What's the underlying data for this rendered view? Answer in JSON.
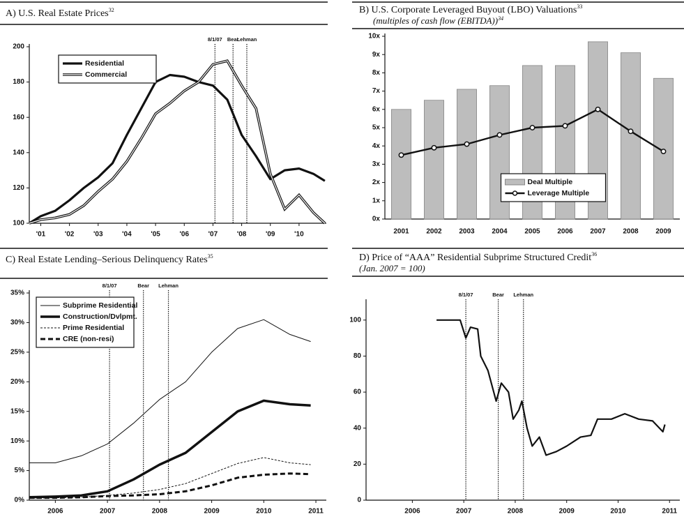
{
  "chart_data": [
    {
      "type": "line",
      "title": "A) U.S. Real Estate Prices",
      "footnote": "32",
      "x": [
        2000.6,
        2001,
        2001.5,
        2002,
        2002.5,
        2003,
        2003.5,
        2004,
        2004.5,
        2005,
        2005.5,
        2006,
        2006.5,
        2007,
        2007.5,
        2008,
        2008.5,
        2009,
        2009.5,
        2010,
        2010.5,
        2010.9
      ],
      "series": [
        {
          "name": "Residential",
          "color": "#111111",
          "style": "solid",
          "width": 3.2,
          "values": [
            100,
            104,
            107,
            113,
            120,
            126,
            134,
            150,
            165,
            180,
            184,
            183,
            180,
            178,
            170,
            150,
            138,
            125,
            130,
            131,
            128,
            124
          ]
        },
        {
          "name": "Commercial",
          "color": "#111111",
          "style": "double",
          "width": 1.2,
          "values": [
            100,
            102,
            103,
            105,
            110,
            118,
            125,
            135,
            148,
            162,
            168,
            175,
            180,
            190,
            192,
            178,
            165,
            128,
            108,
            116,
            106,
            100
          ]
        }
      ],
      "xlim": [
        2000.6,
        2010.95
      ],
      "ylim": [
        100,
        200
      ],
      "xticks": [
        {
          "value": 2001,
          "label": "'01"
        },
        {
          "value": 2002,
          "label": "'02"
        },
        {
          "value": 2003,
          "label": "'03"
        },
        {
          "value": 2004,
          "label": "'04"
        },
        {
          "value": 2005,
          "label": "'05"
        },
        {
          "value": 2006,
          "label": "'06"
        },
        {
          "value": 2007,
          "label": "'07"
        },
        {
          "value": 2008,
          "label": "'08"
        },
        {
          "value": 2009,
          "label": "'09"
        },
        {
          "value": 2010,
          "label": "'10"
        }
      ],
      "yticks": [
        100,
        120,
        140,
        160,
        180,
        200
      ],
      "events": [
        {
          "label": "8/1/07",
          "x": 2007.07
        },
        {
          "label": "Bear",
          "x": 2007.7
        },
        {
          "label": "Lehman",
          "x": 2008.18
        }
      ],
      "legend": "upper left"
    },
    {
      "type": "combo",
      "title": "B) U.S. Corporate Leveraged Buyout (LBO) Valuations",
      "footnote": "33",
      "subtitle": "(multiples of cash flow (EBITDA))",
      "subtitle_footnote": "34",
      "categories": [
        "2001",
        "2002",
        "2003",
        "2004",
        "2005",
        "2006",
        "2007",
        "2008",
        "2009"
      ],
      "series": [
        {
          "name": "Deal Multiple",
          "type": "bar",
          "color": "#bdbdbd",
          "values": [
            6.0,
            6.5,
            7.1,
            7.3,
            8.4,
            8.4,
            9.7,
            9.1,
            7.7
          ]
        },
        {
          "name": "Leverage Multiple",
          "type": "line",
          "color": "#111111",
          "values": [
            3.5,
            3.9,
            4.1,
            4.6,
            5.0,
            5.1,
            6.0,
            4.8,
            3.7
          ]
        }
      ],
      "ylim": [
        0,
        10
      ],
      "yticks": [
        {
          "value": 0,
          "label": "0x"
        },
        {
          "value": 1,
          "label": "1x"
        },
        {
          "value": 2,
          "label": "2x"
        },
        {
          "value": 3,
          "label": "3x"
        },
        {
          "value": 4,
          "label": "4x"
        },
        {
          "value": 5,
          "label": "5x"
        },
        {
          "value": 6,
          "label": "6x"
        },
        {
          "value": 7,
          "label": "7x"
        },
        {
          "value": 8,
          "label": "8x"
        },
        {
          "value": 9,
          "label": "9x"
        },
        {
          "value": 10,
          "label": "10x"
        }
      ],
      "legend": "lower center"
    },
    {
      "type": "line",
      "title": "C) Real Estate Lending–Serious Delinquency Rates",
      "footnote": "35",
      "x": [
        2005.5,
        2006,
        2006.5,
        2007,
        2007.5,
        2008,
        2008.5,
        2009,
        2009.5,
        2010,
        2010.5,
        2010.9
      ],
      "series": [
        {
          "name": "Subprime Residential",
          "color": "#111111",
          "style": "solid",
          "width": 1,
          "values": [
            6.3,
            6.3,
            7.5,
            9.5,
            13,
            17,
            20,
            25,
            29,
            30.5,
            28,
            26.8
          ]
        },
        {
          "name": "Construction/Dvlpmt.",
          "color": "#111111",
          "style": "solid",
          "width": 3.5,
          "values": [
            0.5,
            0.6,
            0.8,
            1.5,
            3.5,
            6,
            8,
            11.5,
            15,
            16.8,
            16.2,
            16
          ]
        },
        {
          "name": "Prime Residential",
          "color": "#111111",
          "style": "dashed",
          "width": 1,
          "values": [
            0.3,
            0.4,
            0.5,
            0.8,
            1.2,
            1.8,
            2.8,
            4.5,
            6.2,
            7.2,
            6.3,
            6.0
          ]
        },
        {
          "name": "CRE (non-resi)",
          "color": "#111111",
          "style": "dashed",
          "width": 3,
          "values": [
            0.4,
            0.4,
            0.5,
            0.7,
            0.8,
            1.0,
            1.5,
            2.5,
            3.8,
            4.3,
            4.5,
            4.4
          ]
        }
      ],
      "xlim": [
        2005.5,
        2011.2
      ],
      "ylim": [
        0,
        35
      ],
      "xticks": [
        2006,
        2007,
        2008,
        2009,
        2010,
        2011
      ],
      "yticks": [
        {
          "value": 0,
          "label": "0%"
        },
        {
          "value": 5,
          "label": "5%"
        },
        {
          "value": 10,
          "label": "10%"
        },
        {
          "value": 15,
          "label": "15%"
        },
        {
          "value": 20,
          "label": "20%"
        },
        {
          "value": 25,
          "label": "25%"
        },
        {
          "value": 30,
          "label": "30%"
        },
        {
          "value": 35,
          "label": "35%"
        }
      ],
      "events": [
        {
          "label": "8/1/07",
          "x": 2007.04
        },
        {
          "label": "Bear",
          "x": 2007.69
        },
        {
          "label": "Lehman",
          "x": 2008.17
        }
      ],
      "legend": "upper left"
    },
    {
      "type": "line",
      "title": "D) Price of “AAA” Residential Subprime Structured Credit",
      "footnote": "36",
      "subtitle": "(Jan. 2007 = 100)",
      "x": [
        2006.47,
        2006.93,
        2007.04,
        2007.13,
        2007.27,
        2007.33,
        2007.47,
        2007.63,
        2007.73,
        2007.87,
        2007.96,
        2008.07,
        2008.13,
        2008.23,
        2008.33,
        2008.47,
        2008.6,
        2008.8,
        2009.0,
        2009.27,
        2009.47,
        2009.6,
        2009.87,
        2010.13,
        2010.4,
        2010.67,
        2010.87,
        2010.91
      ],
      "series": [
        {
          "name": "AAA",
          "color": "#111111",
          "style": "solid",
          "width": 2.2,
          "values": [
            100,
            100,
            90,
            96,
            95,
            80,
            72,
            55,
            65,
            60,
            45,
            50,
            55,
            40,
            30,
            35,
            25,
            27,
            30,
            35,
            36,
            45,
            45,
            48,
            45,
            44,
            38,
            42
          ]
        }
      ],
      "xlim": [
        2005.1,
        2011.2
      ],
      "ylim": [
        0,
        110
      ],
      "xticks": [
        2006,
        2007,
        2008,
        2009,
        2010,
        2011
      ],
      "yticks": [
        0,
        20,
        40,
        60,
        80,
        100
      ],
      "events": [
        {
          "label": "8/1/07",
          "x": 2007.04
        },
        {
          "label": "Bear",
          "x": 2007.67
        },
        {
          "label": "Lehman",
          "x": 2008.16
        }
      ]
    }
  ]
}
